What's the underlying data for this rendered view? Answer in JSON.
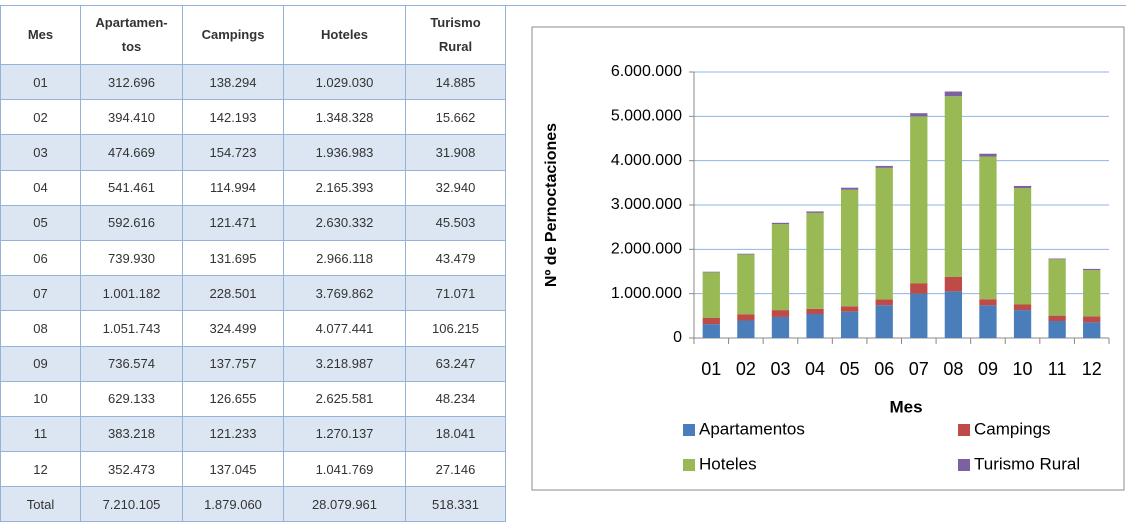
{
  "table": {
    "headers": [
      "Mes",
      "Apartamen-\ntos",
      "Campings",
      "Hoteles",
      "Turismo\nRural"
    ],
    "rows": [
      [
        "01",
        "312.696",
        "138.294",
        "1.029.030",
        "14.885"
      ],
      [
        "02",
        "394.410",
        "142.193",
        "1.348.328",
        "15.662"
      ],
      [
        "03",
        "474.669",
        "154.723",
        "1.936.983",
        "31.908"
      ],
      [
        "04",
        "541.461",
        "114.994",
        "2.165.393",
        "32.940"
      ],
      [
        "05",
        "592.616",
        "121.471",
        "2.630.332",
        "45.503"
      ],
      [
        "06",
        "739.930",
        "131.695",
        "2.966.118",
        "43.479"
      ],
      [
        "07",
        "1.001.182",
        "228.501",
        "3.769.862",
        "71.071"
      ],
      [
        "08",
        "1.051.743",
        "324.499",
        "4.077.441",
        "106.215"
      ],
      [
        "09",
        "736.574",
        "137.757",
        "3.218.987",
        "63.247"
      ],
      [
        "10",
        "629.133",
        "126.655",
        "2.625.581",
        "48.234"
      ],
      [
        "11",
        "383.218",
        "121.233",
        "1.270.137",
        "18.041"
      ],
      [
        "12",
        "352.473",
        "137.045",
        "1.041.769",
        "27.146"
      ],
      [
        "Total",
        "7.210.105",
        "1.879.060",
        "28.079.961",
        "518.331"
      ]
    ]
  },
  "chart_data": {
    "type": "stacked_bar",
    "x_label": "Mes",
    "y_label": "Nº de Pernoctaciones",
    "categories": [
      "01",
      "02",
      "03",
      "04",
      "05",
      "06",
      "07",
      "08",
      "09",
      "10",
      "11",
      "12"
    ],
    "series": [
      {
        "name": "Apartamentos",
        "color": "#4a7ebb",
        "values": [
          312696,
          394410,
          474669,
          541461,
          592616,
          739930,
          1001182,
          1051743,
          736574,
          629133,
          383218,
          352473
        ]
      },
      {
        "name": "Campings",
        "color": "#be4b48",
        "values": [
          138294,
          142193,
          154723,
          114994,
          121471,
          131695,
          228501,
          324499,
          137757,
          126655,
          121233,
          137045
        ]
      },
      {
        "name": "Hoteles",
        "color": "#98b954",
        "values": [
          1029030,
          1348328,
          1936983,
          2165393,
          2630332,
          2966118,
          3769862,
          4077441,
          3218987,
          2625581,
          1270137,
          1041769
        ]
      },
      {
        "name": "Turismo Rural",
        "color": "#7d60a0",
        "values": [
          14885,
          15662,
          31908,
          32940,
          45503,
          43479,
          71071,
          106215,
          63247,
          48234,
          18041,
          27146
        ]
      }
    ],
    "ylim": [
      0,
      6000000
    ],
    "yticks": [
      0,
      {
        "value": 1000000,
        "label": "1.000.000"
      },
      {
        "value": 2000000,
        "label": "2.000.000"
      },
      {
        "value": 3000000,
        "label": "3.000.000"
      },
      {
        "value": 4000000,
        "label": "4.000.000"
      },
      {
        "value": 5000000,
        "label": "5.000.000"
      },
      {
        "value": 6000000,
        "label": "6.000.000"
      }
    ],
    "grid": true,
    "legend": "bottom"
  }
}
